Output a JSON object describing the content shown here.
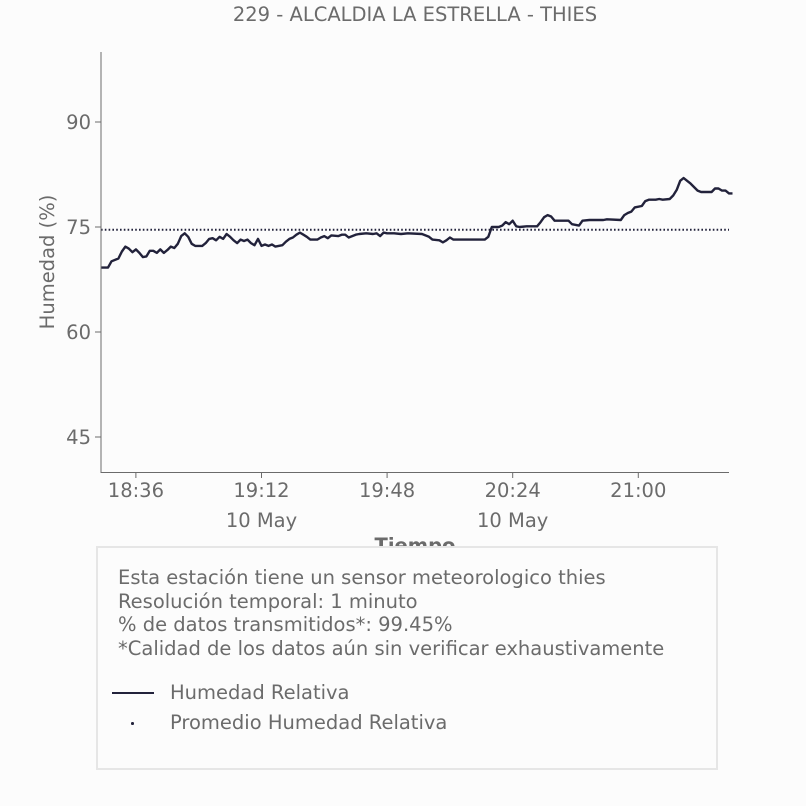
{
  "chart_data": {
    "type": "line",
    "title": "229 - ALCALDIA LA ESTRELLA - THIES",
    "xlabel": "Tiempo",
    "ylabel": "Humedad (%)",
    "x_range": [
      "10 May 18:26",
      "10 May 21:26"
    ],
    "ylim": [
      40,
      100
    ],
    "y_ticks": [
      45,
      60,
      75,
      90
    ],
    "x_ticks": [
      {
        "time": "18:36",
        "label": "18:36",
        "sublabel": ""
      },
      {
        "time": "19:12",
        "label": "19:12",
        "sublabel": "10 May"
      },
      {
        "time": "19:48",
        "label": "19:48",
        "sublabel": ""
      },
      {
        "time": "20:24",
        "label": "20:24",
        "sublabel": "10 May"
      },
      {
        "time": "21:00",
        "label": "21:00",
        "sublabel": ""
      }
    ],
    "grid": false,
    "series": [
      {
        "name": "Humedad Relativa",
        "color": "#22223b",
        "style": "solid",
        "points": [
          [
            "18:26",
            69.2
          ],
          [
            "18:28",
            69.2
          ],
          [
            "18:29",
            70.1
          ],
          [
            "18:31",
            70.5
          ],
          [
            "18:32",
            71.5
          ],
          [
            "18:33",
            72.2
          ],
          [
            "18:34",
            71.9
          ],
          [
            "18:35",
            71.4
          ],
          [
            "18:36",
            71.8
          ],
          [
            "18:37",
            71.3
          ],
          [
            "18:38",
            70.7
          ],
          [
            "18:39",
            70.8
          ],
          [
            "18:40",
            71.6
          ],
          [
            "18:41",
            71.6
          ],
          [
            "18:42",
            71.3
          ],
          [
            "18:43",
            71.8
          ],
          [
            "18:44",
            71.3
          ],
          [
            "18:45",
            71.7
          ],
          [
            "18:46",
            72.2
          ],
          [
            "18:47",
            72.0
          ],
          [
            "18:48",
            72.6
          ],
          [
            "18:49",
            73.7
          ],
          [
            "18:50",
            74.1
          ],
          [
            "18:51",
            73.6
          ],
          [
            "18:52",
            72.6
          ],
          [
            "18:53",
            72.3
          ],
          [
            "18:55",
            72.3
          ],
          [
            "18:56",
            72.7
          ],
          [
            "18:57",
            73.3
          ],
          [
            "18:58",
            73.4
          ],
          [
            "18:59",
            73.1
          ],
          [
            "19:00",
            73.6
          ],
          [
            "19:01",
            73.3
          ],
          [
            "19:02",
            74.0
          ],
          [
            "19:03",
            73.6
          ],
          [
            "19:04",
            73.1
          ],
          [
            "19:05",
            72.7
          ],
          [
            "19:06",
            73.2
          ],
          [
            "19:07",
            73.0
          ],
          [
            "19:08",
            73.2
          ],
          [
            "19:09",
            72.7
          ],
          [
            "19:10",
            72.4
          ],
          [
            "19:11",
            73.3
          ],
          [
            "19:12",
            72.3
          ],
          [
            "19:13",
            72.5
          ],
          [
            "19:14",
            72.3
          ],
          [
            "19:15",
            72.5
          ],
          [
            "19:16",
            72.2
          ],
          [
            "19:18",
            72.4
          ],
          [
            "19:19",
            72.9
          ],
          [
            "19:20",
            73.3
          ],
          [
            "19:21",
            73.5
          ],
          [
            "19:22",
            73.9
          ],
          [
            "19:23",
            74.2
          ],
          [
            "19:24",
            73.9
          ],
          [
            "19:25",
            73.6
          ],
          [
            "19:26",
            73.2
          ],
          [
            "19:28",
            73.2
          ],
          [
            "19:29",
            73.5
          ],
          [
            "19:30",
            73.7
          ],
          [
            "19:31",
            73.4
          ],
          [
            "19:32",
            73.8
          ],
          [
            "19:34",
            73.7
          ],
          [
            "19:35",
            73.9
          ],
          [
            "19:36",
            73.9
          ],
          [
            "19:37",
            73.5
          ],
          [
            "19:38",
            73.7
          ],
          [
            "19:39",
            73.9
          ],
          [
            "19:40",
            74.0
          ],
          [
            "19:42",
            74.1
          ],
          [
            "19:44",
            74.0
          ],
          [
            "19:45",
            74.1
          ],
          [
            "19:46",
            73.7
          ],
          [
            "19:47",
            74.2
          ],
          [
            "19:48",
            74.1
          ],
          [
            "19:50",
            74.1
          ],
          [
            "19:52",
            74.0
          ],
          [
            "19:54",
            74.1
          ],
          [
            "19:58",
            74.0
          ],
          [
            "20:00",
            73.6
          ],
          [
            "20:01",
            73.2
          ],
          [
            "20:03",
            73.1
          ],
          [
            "20:04",
            72.8
          ],
          [
            "20:05",
            73.1
          ],
          [
            "20:06",
            73.5
          ],
          [
            "20:07",
            73.2
          ],
          [
            "20:09",
            73.2
          ],
          [
            "20:16",
            73.2
          ],
          [
            "20:17",
            73.6
          ],
          [
            "20:18",
            75.0
          ],
          [
            "20:20",
            75.0
          ],
          [
            "20:21",
            75.2
          ],
          [
            "20:22",
            75.7
          ],
          [
            "20:23",
            75.4
          ],
          [
            "20:24",
            75.9
          ],
          [
            "20:25",
            75.1
          ],
          [
            "20:26",
            75.0
          ],
          [
            "20:28",
            75.1
          ],
          [
            "20:31",
            75.1
          ],
          [
            "20:32",
            75.7
          ],
          [
            "20:33",
            76.4
          ],
          [
            "20:34",
            76.7
          ],
          [
            "20:35",
            76.5
          ],
          [
            "20:36",
            75.9
          ],
          [
            "20:40",
            75.9
          ],
          [
            "20:41",
            75.4
          ],
          [
            "20:43",
            75.2
          ],
          [
            "20:44",
            75.9
          ],
          [
            "20:46",
            76.0
          ],
          [
            "20:50",
            76.0
          ],
          [
            "20:51",
            76.1
          ],
          [
            "20:55",
            76.0
          ],
          [
            "20:56",
            76.7
          ],
          [
            "20:57",
            77.0
          ],
          [
            "20:58",
            77.2
          ],
          [
            "20:59",
            77.8
          ],
          [
            "21:01",
            78.0
          ],
          [
            "21:02",
            78.7
          ],
          [
            "21:03",
            78.9
          ],
          [
            "21:05",
            78.9
          ],
          [
            "21:06",
            79.0
          ],
          [
            "21:07",
            78.9
          ],
          [
            "21:09",
            79.0
          ],
          [
            "21:10",
            79.5
          ],
          [
            "21:11",
            80.3
          ],
          [
            "21:12",
            81.6
          ],
          [
            "21:13",
            82.0
          ],
          [
            "21:14",
            81.6
          ],
          [
            "21:15",
            81.2
          ],
          [
            "21:16",
            80.7
          ],
          [
            "21:17",
            80.2
          ],
          [
            "21:18",
            80.0
          ],
          [
            "21:21",
            80.0
          ],
          [
            "21:22",
            80.5
          ],
          [
            "21:23",
            80.5
          ],
          [
            "21:24",
            80.2
          ],
          [
            "21:25",
            80.2
          ],
          [
            "21:26",
            79.8
          ],
          [
            "21:27",
            79.8
          ]
        ]
      },
      {
        "name": "Promedio Humedad Relativa",
        "color": "#22223b",
        "style": "dotted",
        "value": 74.6
      }
    ]
  },
  "info": {
    "lines": [
      "Esta estación tiene un sensor meteorologico thies",
      "Resolución temporal: 1 minuto",
      "% de datos transmitidos*: 99.45%",
      "*Calidad de los datos aún sin verificar exhaustivamente"
    ]
  },
  "legend": {
    "items": [
      {
        "label": "Humedad Relativa",
        "style": "solid"
      },
      {
        "label": "Promedio Humedad Relativa",
        "style": "dotted"
      }
    ]
  }
}
